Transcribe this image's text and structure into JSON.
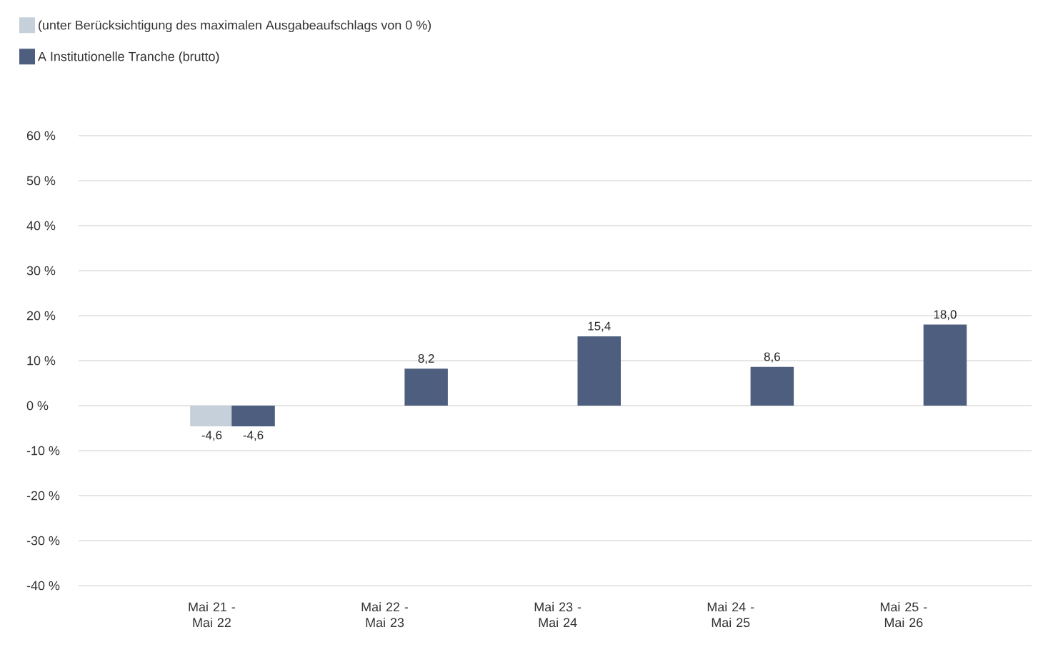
{
  "chart_data": {
    "type": "bar",
    "categories": [
      "Mai 21 - Mai 22",
      "Mai 22 - Mai 23",
      "Mai 23 - Mai 24",
      "Mai 24 - Mai 25",
      "Mai 25 - Mai 26"
    ],
    "series": [
      {
        "name": "(unter Berücksichtigung des maximalen Ausgabeaufschlags von 0 %)",
        "color": "#c5d0db",
        "values": [
          -4.6,
          null,
          null,
          null,
          null
        ],
        "value_labels": [
          "-4,6",
          null,
          null,
          null,
          null
        ]
      },
      {
        "name": "A Institutionelle Tranche (brutto)",
        "color": "#4d5e7e",
        "values": [
          -4.6,
          8.2,
          15.4,
          8.6,
          18.0
        ],
        "value_labels": [
          "-4,6",
          "8,2",
          "15,4",
          "8,6",
          "18,0"
        ]
      }
    ],
    "ylim": [
      -40,
      60
    ],
    "yticks": [
      {
        "value": -40,
        "label": "-40 %"
      },
      {
        "value": -30,
        "label": "-30 %"
      },
      {
        "value": -20,
        "label": "-20 %"
      },
      {
        "value": -10,
        "label": "-10 %"
      },
      {
        "value": 0,
        "label": "0 %"
      },
      {
        "value": 10,
        "label": "10 %"
      },
      {
        "value": 20,
        "label": "20 %"
      },
      {
        "value": 30,
        "label": "30 %"
      },
      {
        "value": 40,
        "label": "40 %"
      },
      {
        "value": 50,
        "label": "50 %"
      },
      {
        "value": 60,
        "label": "60 %"
      }
    ],
    "grid": "y",
    "legend": "top left"
  }
}
